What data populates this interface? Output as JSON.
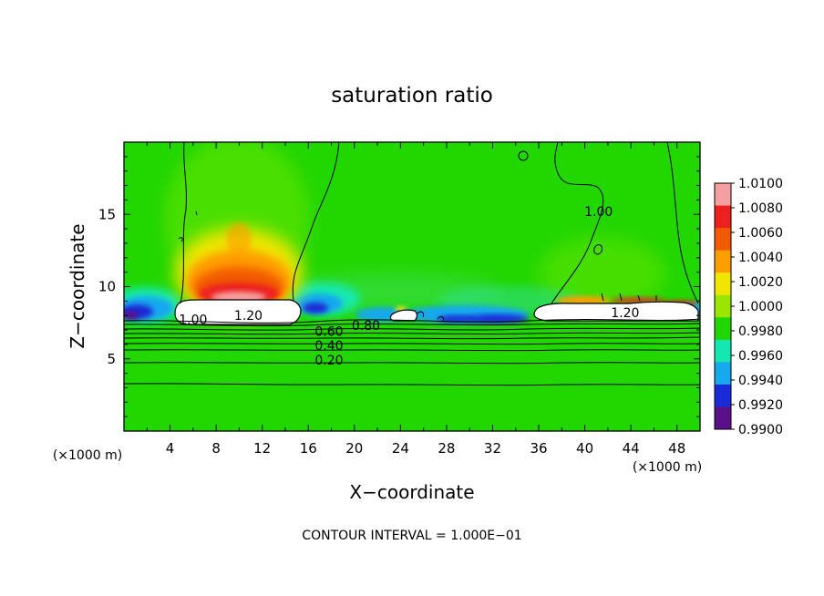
{
  "chart_data": {
    "type": "heatmap",
    "title": "saturation ratio",
    "xlabel": "X−coordinate",
    "ylabel": "Z−coordinate",
    "x_unit": "(×1000 m)",
    "z_unit": "(×1000 m)",
    "xlim": [
      0,
      50
    ],
    "ylim": [
      0,
      20
    ],
    "x_ticks": [
      4,
      8,
      12,
      16,
      20,
      24,
      28,
      32,
      36,
      40,
      44,
      48
    ],
    "y_ticks": [
      5,
      10,
      15
    ],
    "colorbar": {
      "levels": [
        "1.0100",
        "1.0080",
        "1.0060",
        "1.0040",
        "1.0020",
        "1.0000",
        "0.9980",
        "0.9960",
        "0.9940",
        "0.9920",
        "0.9900"
      ],
      "colors": [
        "#f4a0a0",
        "#ee2020",
        "#f25a00",
        "#ff9e00",
        "#f0e600",
        "#9ae600",
        "#22d600",
        "#14e8b0",
        "#18a8ee",
        "#1a2ad6",
        "#5a1088"
      ]
    },
    "contour_labels": [
      {
        "text": "1.00",
        "x": 6.0,
        "y": 7.4
      },
      {
        "text": "1.20",
        "x": 10.8,
        "y": 7.7
      },
      {
        "text": "0.80",
        "x": 21.0,
        "y": 7.0
      },
      {
        "text": "0.60",
        "x": 17.8,
        "y": 6.6
      },
      {
        "text": "0.40",
        "x": 17.8,
        "y": 5.6
      },
      {
        "text": "0.20",
        "x": 17.8,
        "y": 4.6
      },
      {
        "text": "1.00",
        "x": 41.2,
        "y": 14.9
      },
      {
        "text": "1.20",
        "x": 43.5,
        "y": 7.9
      }
    ],
    "footer": "CONTOUR INTERVAL = 1.000E−01"
  },
  "colors": {
    "background": "#ffffff",
    "field": "#22d600",
    "cloud": "#ffffff",
    "contour": "#000000"
  }
}
